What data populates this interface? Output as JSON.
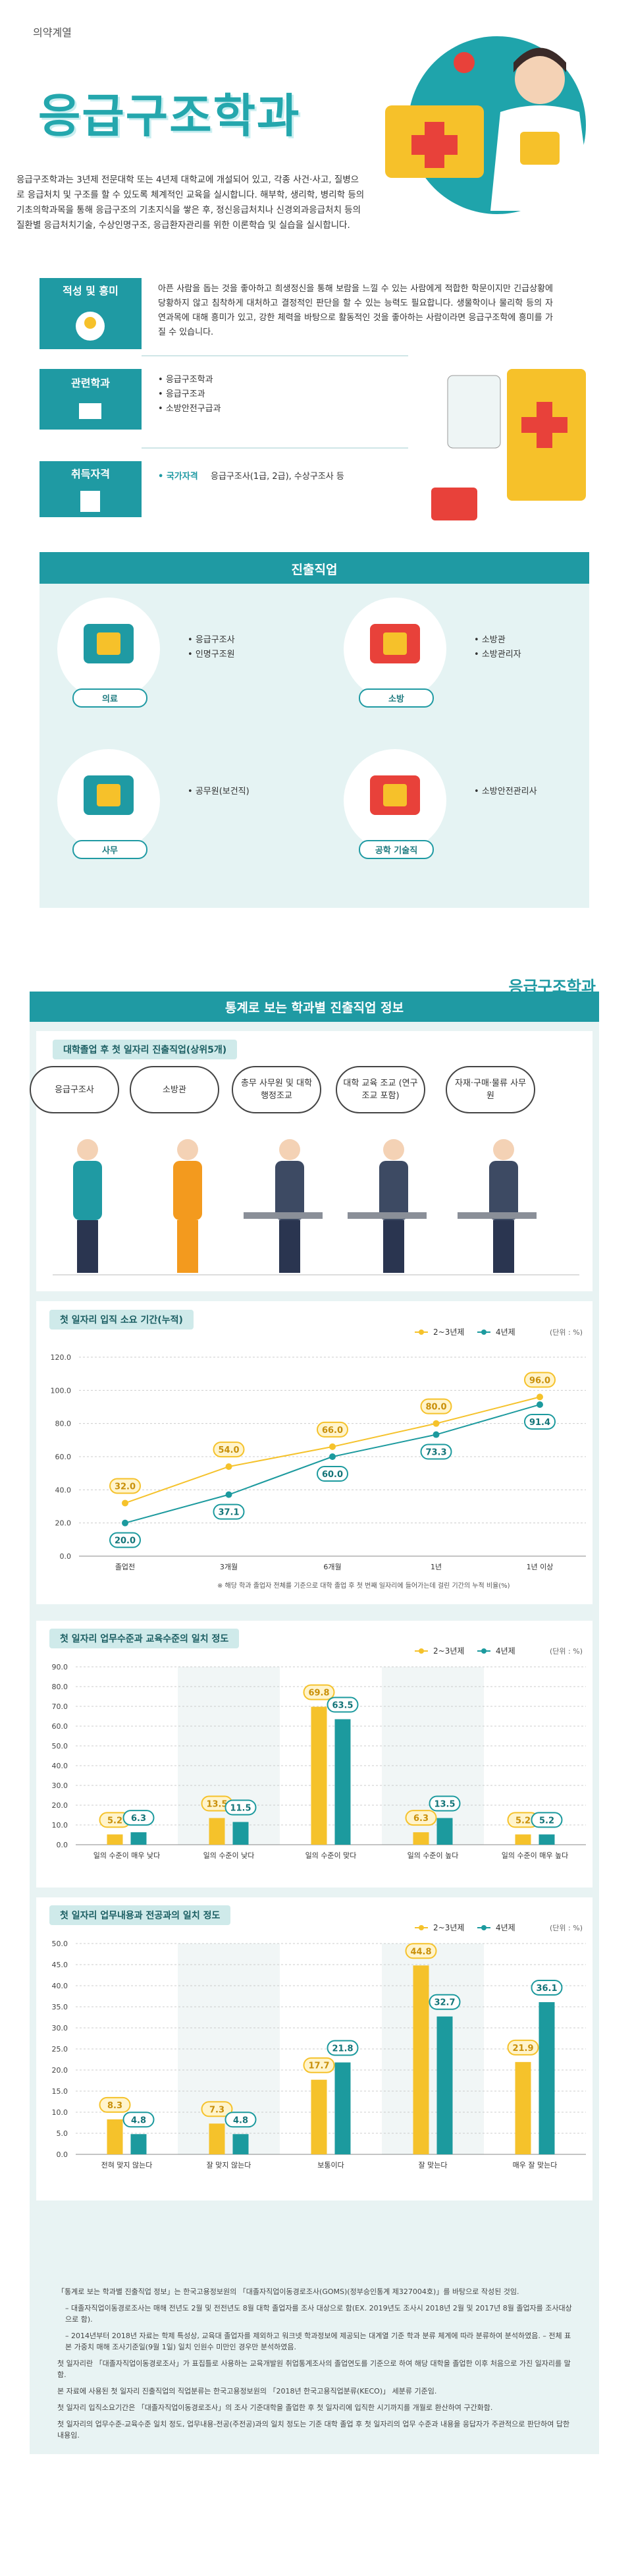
{
  "header": {
    "category": "의약계열",
    "title": "응급구조학과",
    "description": "응급구조학과는 3년제 전문대학 또는 4년제 대학교에 개설되어 있고, 각종 사건·사고, 질병으로 응급처치 및 구조를 할 수 있도록 체계적인 교육을 실시합니다. 해부학, 생리학, 병리학 등의 기초의학과목을 통해 응급구조의 기초지식을 쌓은 후, 정신응급처치나 신경외과응급처치 등의 질환별 응급처치기술, 수상인명구조, 응급환자관리를 위한 이론학습 및 실습을 실시합니다."
  },
  "aptitude": {
    "label": "적성 및 흥미",
    "text": "아픈 사람을 돕는 것을 좋아하고 희생정신을 통해 보람을 느낄 수 있는 사람에게 적합한 학문이지만 긴급상황에 당황하지 않고 침착하게 대처하고 결정적인 판단을 할 수 있는 능력도 필요합니다. 생물학이나 물리학 등의 자연과목에 대해 흥미가 있고, 강한 체력을 바탕으로 활동적인 것을 좋아하는 사람이라면 응급구조학에 흥미를 가질 수 있습니다."
  },
  "related": {
    "label": "관련학과",
    "items": [
      "응급구조학과",
      "응급구조과",
      "소방안전구급과"
    ]
  },
  "qualification": {
    "label": "취득자격",
    "type": "국가자격",
    "text": "응급구조사(1급, 2급), 수상구조사 등"
  },
  "careers": {
    "title": "진출직업",
    "groups": [
      {
        "label": "의료",
        "jobs": [
          "응급구조사",
          "인명구조원"
        ]
      },
      {
        "label": "소방",
        "jobs": [
          "소방관",
          "소방관리자"
        ]
      },
      {
        "label": "사무",
        "jobs": [
          "공무원(보건직)"
        ]
      },
      {
        "label": "공학 기술직",
        "jobs": [
          "소방안전관리사"
        ]
      }
    ]
  },
  "brand": "응급구조학과",
  "stats": {
    "title": "통계로 보는 학과별 진출직업 정보",
    "top_jobs": {
      "title": "대학졸업 후 첫 일자리 진출직업(상위5개)",
      "items": [
        "응급구조사",
        "소방관",
        "총무 사무원 및 대학 행정조교",
        "대학 교육 조교 (연구 조교 포함)",
        "자재·구매·물류 사무원"
      ]
    },
    "notes": [
      "「통계로 보는 학과별 진출직업 정보」는 한국고용정보원의 「대졸자직업이동경로조사(GOMS)(정부승인통계 제327004호)」를 바탕으로 작성된 것임.",
      "– 대졸자직업이동경로조사는 매해 전년도 2월 및 전전년도 8월 대학 졸업자를 조사 대상으로 함(EX. 2019년도 조사시 2018년 2월 및 2017년 8월 졸업자를 조사대상으로 함).",
      "– 2014년부터 2018년 자료는 학제 특성상, 교육대 졸업자를 제외하고 워크넷 학과정보에 제공되는 대계열 기준 학과 분류 체계에 따라 분류하여 분석하였음. – 전체 표본 가중치 매해 조사기준일(9월 1일) 일치 인원수 미만인 경우만 분석하였음.",
      "첫 일자리란 「대졸자직업이동경로조사」가 표집틀로 사용하는 교육개발원 취업통계조사의 졸업연도를 기준으로 하여 해당 대학을 졸업한 이후 처음으로 가진 일자리를 말함.",
      "본 자료에 사용된 첫 일자리 진출직업의 직업분류는 한국고용정보원의 「2018년 한국고용직업분류(KECO)」 세분류 기준임.",
      "첫 일자리 입직소요기간은 「대졸자직업이동경로조사」의 조사 기준대학을 졸업한 후 첫 일자리에 입직한 시기까지를 개월로 환산하여 구간화함.",
      "첫 일자리의 업무수준-교육수준 일치 정도, 업무내용-전공(주전공)과의 일치 정도는 기준 대학 졸업 후 첫 일자리의 업무 수준과 내용을 응답자가 주관적으로 판단하여 답한 내용임."
    ]
  },
  "chart_data": [
    {
      "type": "line",
      "title": "첫 일자리 입직 소요 기간(누적)",
      "unit": "(단위 : %)",
      "categories": [
        "졸업전",
        "3개월",
        "6개월",
        "1년",
        "1년 이상"
      ],
      "series": [
        {
          "name": "2~3년제",
          "color": "#f5c22b",
          "values": [
            32,
            54,
            66,
            80,
            96
          ],
          "value_labels": [
            "32.0",
            "54.0",
            "66.0",
            "80.0",
            "96.0"
          ]
        },
        {
          "name": "4년제",
          "color": "#1c9a9e",
          "values": [
            20,
            37.1,
            60,
            73.3,
            91.4
          ],
          "value_labels": [
            "20.0",
            "37.1",
            "60.0",
            "73.3",
            "91.4"
          ]
        }
      ],
      "ylim": [
        0,
        120
      ],
      "yticks": [
        {
          "value": 0,
          "label": "0.0"
        },
        {
          "value": 20,
          "label": "20.0"
        },
        {
          "value": 40,
          "label": "40.0"
        },
        {
          "value": 60,
          "label": "60.0"
        },
        {
          "value": 80,
          "label": "80.0"
        },
        {
          "value": 100,
          "label": "100.0"
        },
        {
          "value": 120,
          "label": "120.0"
        }
      ],
      "grid": true,
      "note": "※ 해당 학과 졸업자 전체를 기준으로 대학 졸업 후 첫 번째 일자리에 들어가는데 걸린 기간의 누적 비율(%)"
    },
    {
      "type": "bar",
      "title": "첫 일자리 업무수준과 교육수준의 일치 정도",
      "unit": "(단위 : %)",
      "categories": [
        "일의 수준이 매우 낮다",
        "일의 수준이 낮다",
        "일의 수준이 맞다",
        "일의 수준이 높다",
        "일의 수준이 매우 높다"
      ],
      "series": [
        {
          "name": "2~3년제",
          "color": "#f5c22b",
          "values": [
            5.2,
            13.5,
            69.8,
            6.3,
            5.2
          ]
        },
        {
          "name": "4년제",
          "color": "#1c9a9e",
          "values": [
            6.3,
            11.5,
            63.5,
            13.5,
            5.2
          ]
        }
      ],
      "ylim": [
        0,
        90
      ],
      "yticks": [
        {
          "value": 0,
          "label": "0.0"
        },
        {
          "value": 10,
          "label": "10.0"
        },
        {
          "value": 20,
          "label": "20.0"
        },
        {
          "value": 30,
          "label": "30.0"
        },
        {
          "value": 40,
          "label": "40.0"
        },
        {
          "value": 50,
          "label": "50.0"
        },
        {
          "value": 60,
          "label": "60.0"
        },
        {
          "value": 70,
          "label": "70.0"
        },
        {
          "value": 80,
          "label": "80.0"
        },
        {
          "value": 90,
          "label": "90.0"
        }
      ],
      "grid": true
    },
    {
      "type": "bar",
      "title": "첫 일자리 업무내용과 전공과의 일치 정도",
      "unit": "(단위 : %)",
      "categories": [
        "전혀 맞지 않는다",
        "잘 맞지 않는다",
        "보통이다",
        "잘 맞는다",
        "매우 잘 맞는다"
      ],
      "series": [
        {
          "name": "2~3년제",
          "color": "#f5c22b",
          "values": [
            8.3,
            7.3,
            17.7,
            44.8,
            21.9
          ]
        },
        {
          "name": "4년제",
          "color": "#1c9a9e",
          "values": [
            4.8,
            4.8,
            21.8,
            32.7,
            36.1
          ]
        }
      ],
      "ylim": [
        0,
        50
      ],
      "yticks": [
        {
          "value": 0,
          "label": "0.0"
        },
        {
          "value": 5,
          "label": "5.0"
        },
        {
          "value": 10,
          "label": "10.0"
        },
        {
          "value": 15,
          "label": "15.0"
        },
        {
          "value": 20,
          "label": "20.0"
        },
        {
          "value": 25,
          "label": "25.0"
        },
        {
          "value": 30,
          "label": "30.0"
        },
        {
          "value": 35,
          "label": "35.0"
        },
        {
          "value": 40,
          "label": "40.0"
        },
        {
          "value": 45,
          "label": "45.0"
        },
        {
          "value": 50,
          "label": "50.0"
        }
      ],
      "grid": true
    }
  ]
}
